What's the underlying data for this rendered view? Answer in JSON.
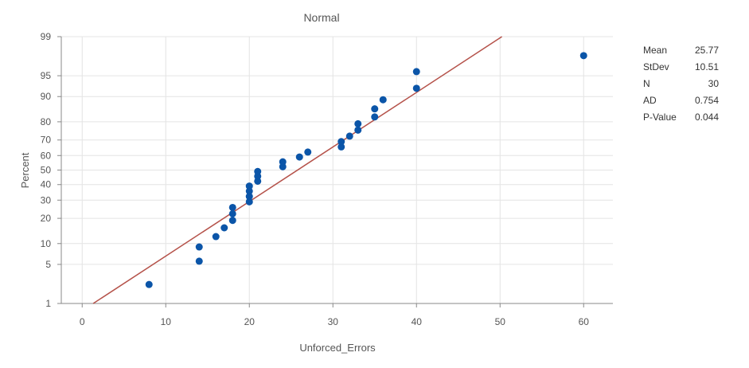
{
  "chart_data": {
    "type": "scatter",
    "title": "Normal",
    "xlabel": "Unforced_Errors",
    "ylabel": "Percent",
    "xlim": [
      -2.5,
      63.5
    ],
    "ylim_percent": [
      1,
      99
    ],
    "y_scale": "normal-probability",
    "x_ticks": [
      0,
      10,
      20,
      30,
      40,
      50,
      60
    ],
    "y_ticks": [
      1,
      5,
      10,
      20,
      30,
      40,
      50,
      60,
      70,
      80,
      90,
      95,
      99
    ],
    "grid": true,
    "fit_line": {
      "mean": 25.77,
      "stdev": 10.51,
      "color": "#b5524a"
    },
    "points_color": "#0b55a8",
    "points": [
      {
        "x": 8,
        "y": 2.3
      },
      {
        "x": 14,
        "y": 5.6
      },
      {
        "x": 14,
        "y": 9.0
      },
      {
        "x": 16,
        "y": 12.3
      },
      {
        "x": 17,
        "y": 15.7
      },
      {
        "x": 18,
        "y": 19.0
      },
      {
        "x": 18,
        "y": 22.3
      },
      {
        "x": 18,
        "y": 25.7
      },
      {
        "x": 20,
        "y": 29.0
      },
      {
        "x": 20,
        "y": 32.3
      },
      {
        "x": 20,
        "y": 35.7
      },
      {
        "x": 20,
        "y": 39.0
      },
      {
        "x": 21,
        "y": 42.3
      },
      {
        "x": 21,
        "y": 45.7
      },
      {
        "x": 21,
        "y": 49.0
      },
      {
        "x": 24,
        "y": 52.3
      },
      {
        "x": 24,
        "y": 55.7
      },
      {
        "x": 26,
        "y": 59.0
      },
      {
        "x": 27,
        "y": 62.3
      },
      {
        "x": 31,
        "y": 65.7
      },
      {
        "x": 31,
        "y": 69.0
      },
      {
        "x": 32,
        "y": 72.3
      },
      {
        "x": 33,
        "y": 75.7
      },
      {
        "x": 33,
        "y": 79.0
      },
      {
        "x": 35,
        "y": 82.3
      },
      {
        "x": 35,
        "y": 85.7
      },
      {
        "x": 36,
        "y": 89.0
      },
      {
        "x": 40,
        "y": 92.3
      },
      {
        "x": 40,
        "y": 95.7
      },
      {
        "x": 60,
        "y": 97.7
      }
    ]
  },
  "stats": [
    {
      "label": "Mean",
      "value": "25.77"
    },
    {
      "label": "StDev",
      "value": "10.51"
    },
    {
      "label": "N",
      "value": "30"
    },
    {
      "label": "AD",
      "value": "0.754"
    },
    {
      "label": "P-Value",
      "value": "0.044"
    }
  ]
}
